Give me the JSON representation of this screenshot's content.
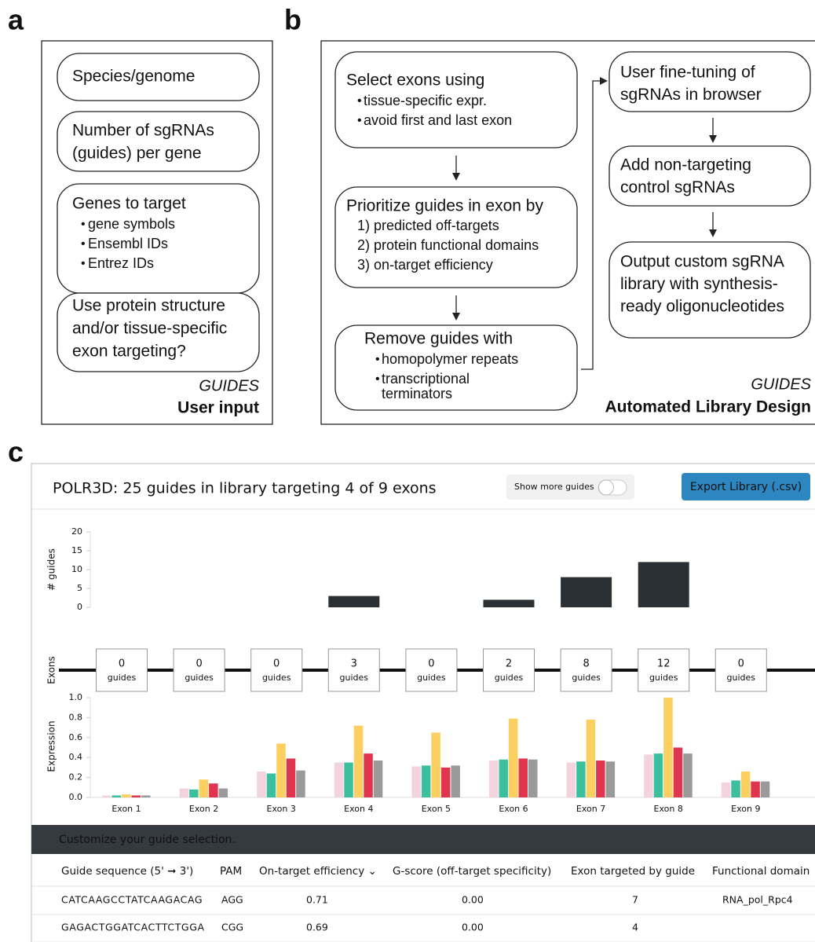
{
  "panel_a": {
    "label": "a",
    "boxes": [
      {
        "lines": [
          "Species/genome"
        ]
      },
      {
        "lines": [
          "Number of sgRNAs",
          "(guides) per gene"
        ]
      },
      {
        "lines": [
          "Genes to target"
        ],
        "bullets": [
          [
            "gene symbols"
          ],
          [
            "Ensembl IDs"
          ],
          [
            "Entrez IDs"
          ]
        ]
      },
      {
        "lines": [
          "Use protein structure",
          "and/or tissue-specific",
          "exon targeting?"
        ]
      }
    ],
    "brand": "GUIDES",
    "caption": "User input"
  },
  "panel_b": {
    "label": "b",
    "steps": [
      {
        "lines": [
          "Select exons using"
        ],
        "bullets": [
          [
            "tissue-specific expr."
          ],
          [
            "avoid first and last exon"
          ]
        ]
      },
      {
        "lines": [
          "Prioritize guides in exon by"
        ],
        "items": [
          "1) predicted off-targets",
          "2) protein functional domains",
          "3) on-target efficiency"
        ]
      },
      {
        "lines": [
          "Remove guides with"
        ],
        "bullets": [
          [
            "homopolymer repeats"
          ],
          [
            "transcriptional",
            "terminators"
          ]
        ]
      },
      {
        "lines": [
          "User fine-tuning of",
          "sgRNAs in browser"
        ]
      },
      {
        "lines": [
          "Add non-targeting",
          "control sgRNAs"
        ]
      },
      {
        "lines": [
          "Output custom sgRNA",
          "library with synthesis-",
          "ready oligonucleotides"
        ]
      }
    ],
    "brand": "GUIDES",
    "caption": "Automated Library Design"
  },
  "panel_c": {
    "label": "c",
    "title": "POLR3D: 25 guides in library targeting 4 of 9 exons",
    "toggle": "Show more guides",
    "button": "Export Library (.csv)",
    "exons": {
      "label": "Exons",
      "unit": "guides"
    },
    "banner": "Customize your guide selection.",
    "table": {
      "columns": [
        "Guide sequence (5' ➞ 3')",
        "PAM",
        "On-target efficiency ⌄",
        "G-score (off-target specificity)",
        "Exon targeted by guide",
        "Functional domain"
      ],
      "rows": [
        [
          "CATCAAGCCTATCAAGACAG",
          "AGG",
          "0.71",
          "0.00",
          "7",
          "RNA_pol_Rpc4"
        ],
        [
          "GAGACTGGATCACTTCTGGA",
          "CGG",
          "0.69",
          "0.00",
          "4"
        ]
      ]
    }
  },
  "chart_data": [
    {
      "type": "bar",
      "ylabel": "# guides",
      "categories": [
        null,
        null,
        null,
        null,
        null,
        null,
        null,
        null,
        null
      ],
      "values": [
        0,
        0,
        0,
        3,
        0,
        2,
        8,
        12,
        0
      ],
      "color": "#2b3035",
      "ylim": [
        0,
        20
      ],
      "yticks": [
        0,
        5,
        10,
        15,
        20
      ]
    },
    {
      "type": "grouped_bar",
      "ylabel": "Expression",
      "categories": [
        "Exon 1",
        "Exon 2",
        "Exon 3",
        "Exon 4",
        "Exon 5",
        "Exon 6",
        "Exon 7",
        "Exon 8",
        "Exon 9"
      ],
      "series": [
        {
          "color": "#f2d3de",
          "values": [
            0.02,
            0.09,
            0.26,
            0.35,
            0.31,
            0.37,
            0.35,
            0.43,
            0.15
          ]
        },
        {
          "color": "#3bbf9f",
          "values": [
            0.02,
            0.08,
            0.24,
            0.35,
            0.32,
            0.38,
            0.36,
            0.44,
            0.17
          ]
        },
        {
          "color": "#fbd061",
          "values": [
            0.03,
            0.18,
            0.54,
            0.72,
            0.65,
            0.79,
            0.78,
            1.0,
            0.26
          ]
        },
        {
          "color": "#e0354f",
          "values": [
            0.02,
            0.14,
            0.39,
            0.44,
            0.3,
            0.39,
            0.37,
            0.5,
            0.16
          ]
        },
        {
          "color": "#9a9a9a",
          "values": [
            0.02,
            0.09,
            0.27,
            0.37,
            0.32,
            0.38,
            0.36,
            0.44,
            0.16
          ]
        }
      ],
      "ylim": [
        0,
        1
      ],
      "yticks": [
        {
          "value": 0,
          "label": "0.0"
        },
        0.2,
        0.4,
        0.6,
        0.8,
        {
          "value": 1,
          "label": "1.0"
        }
      ]
    }
  ]
}
